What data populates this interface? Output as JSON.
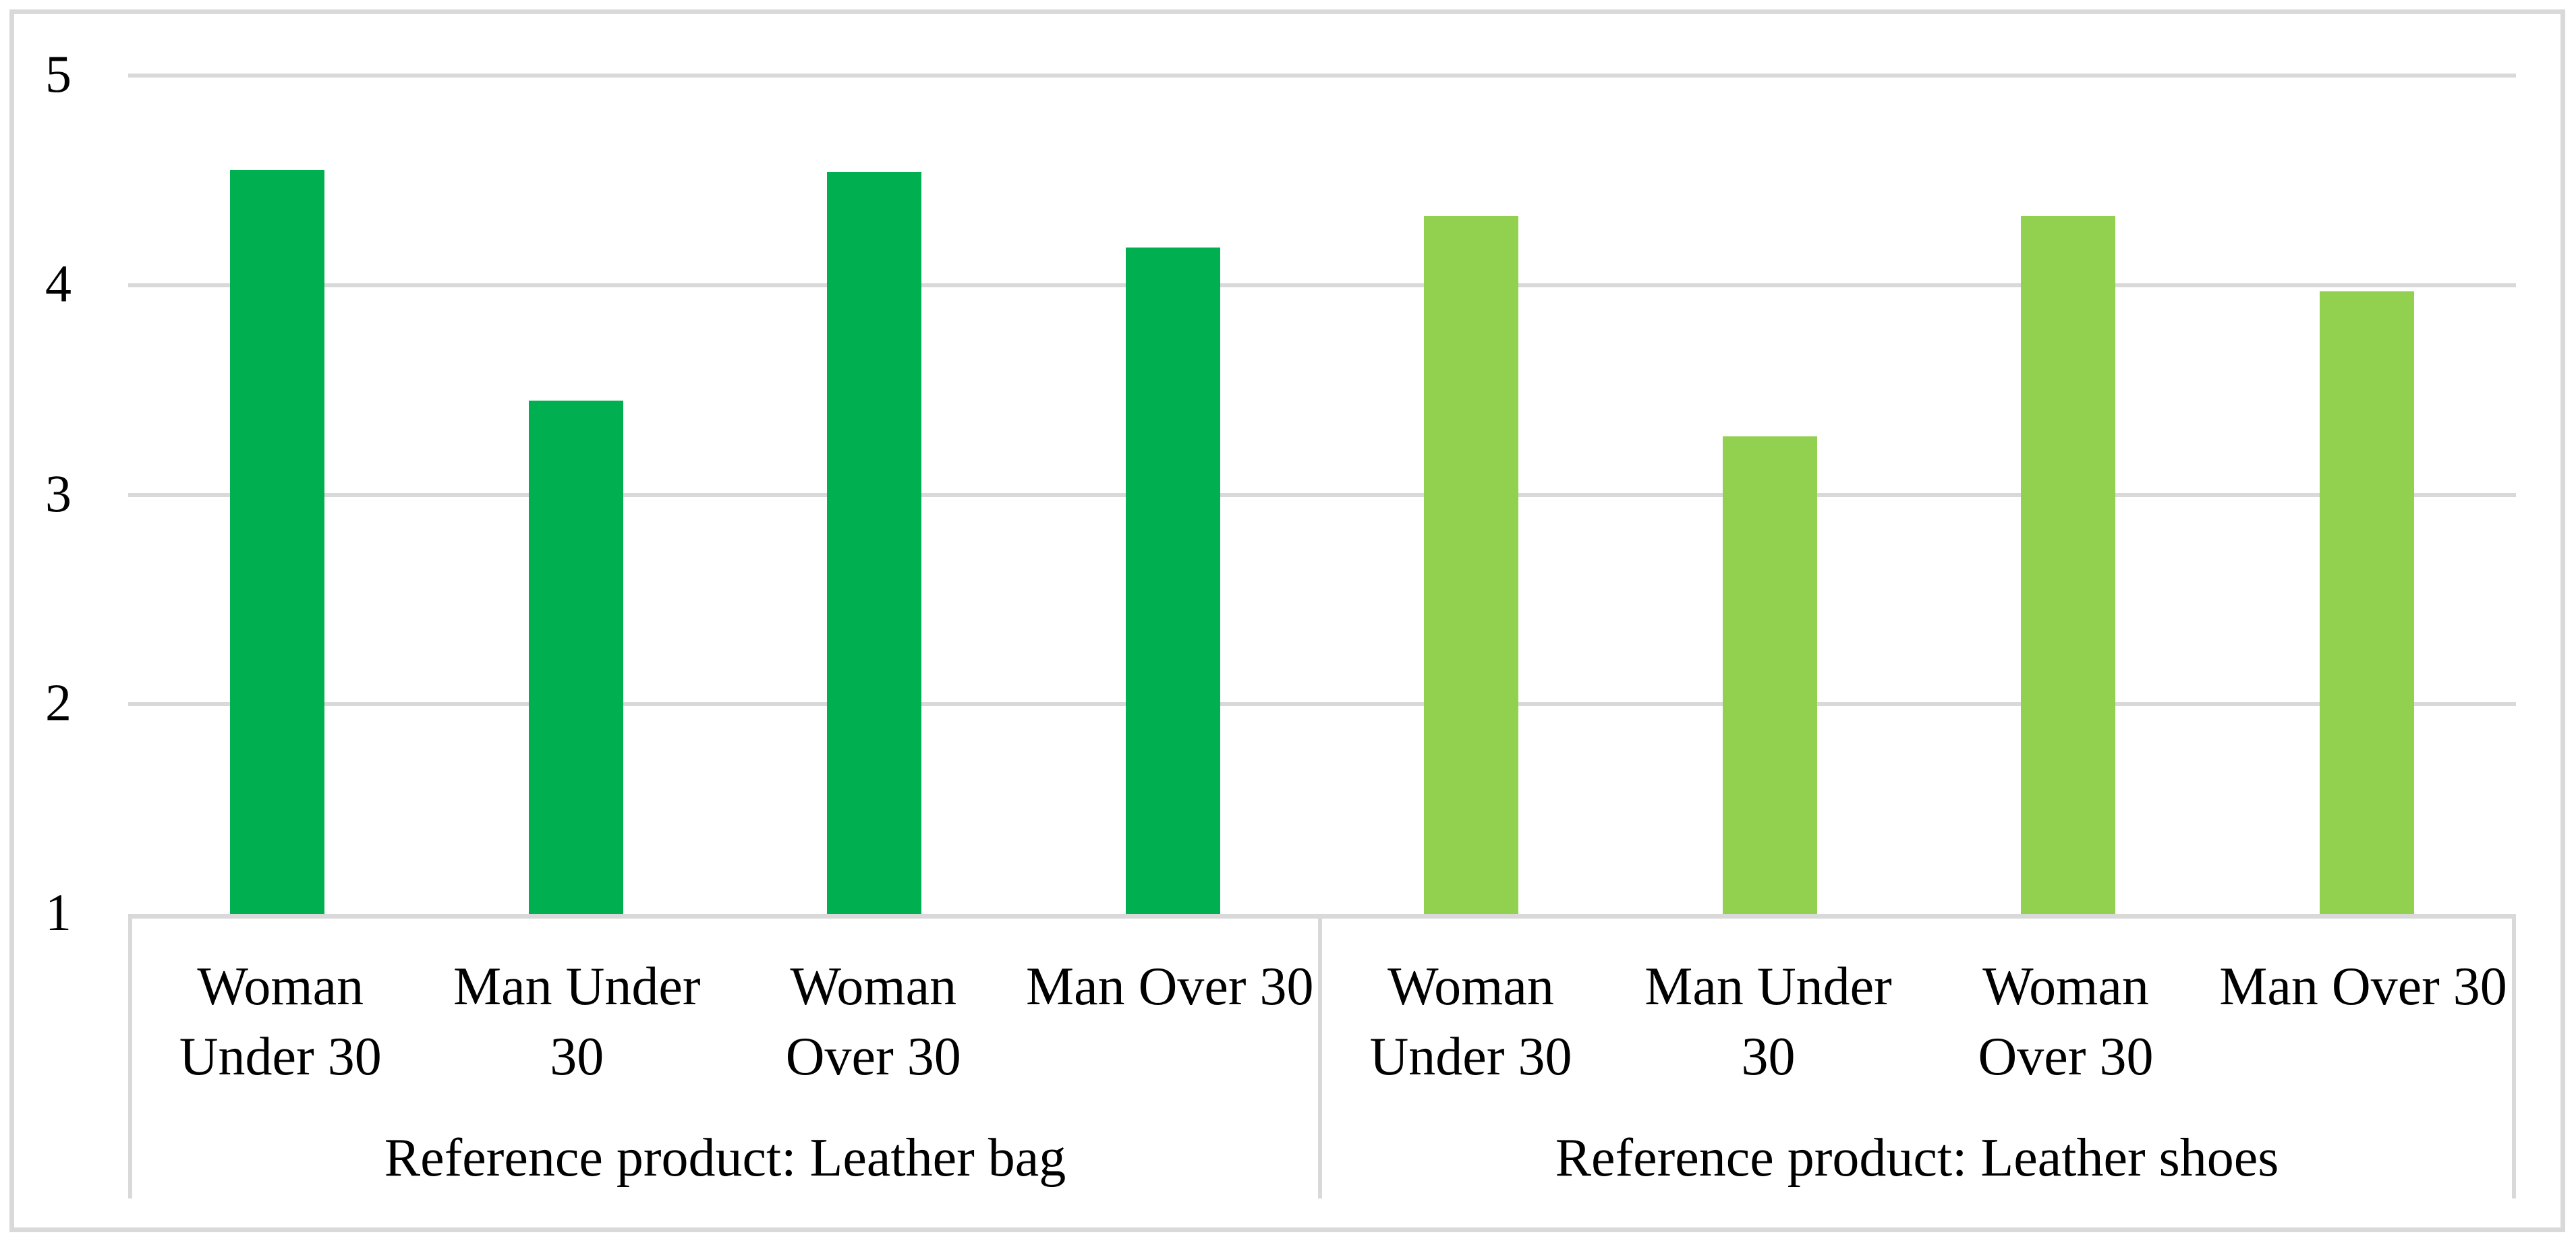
{
  "figure": {
    "kind": "grouped-bar-chart-figure",
    "background_color": "#FFFFFF",
    "outer_border_color": "#D9D9D9"
  },
  "chart_data": {
    "type": "bar",
    "title": "",
    "xlabel": "",
    "ylabel": "",
    "ylim": [
      1,
      5
    ],
    "yticks": [
      1,
      2,
      3,
      4,
      5
    ],
    "grid": "horizontal",
    "legend_position": "none",
    "gridline_color": "#D9D9D9",
    "axis_line_color": "#D9D9D9",
    "text_color": "#000000",
    "groups": [
      {
        "label": "Reference product: Leather bag",
        "color": "#00B050",
        "categories": [
          "Woman Under 30",
          "Man Under 30",
          "Woman Over 30",
          "Man Over 30"
        ],
        "category_lines": [
          [
            "Woman",
            "Under 30"
          ],
          [
            "Man Under",
            "30"
          ],
          [
            "Woman",
            "Over 30"
          ],
          [
            "Man Over 30"
          ]
        ],
        "values": [
          4.55,
          3.45,
          4.54,
          4.18
        ]
      },
      {
        "label": "Reference product: Leather shoes",
        "color": "#92D050",
        "categories": [
          "Woman Under 30",
          "Man Under 30",
          "Woman Over 30",
          "Man Over 30"
        ],
        "category_lines": [
          [
            "Woman",
            "Under 30"
          ],
          [
            "Man Under",
            "30"
          ],
          [
            "Woman",
            "Over 30"
          ],
          [
            "Man Over 30"
          ]
        ],
        "values": [
          4.33,
          3.28,
          4.33,
          3.97
        ]
      }
    ]
  }
}
